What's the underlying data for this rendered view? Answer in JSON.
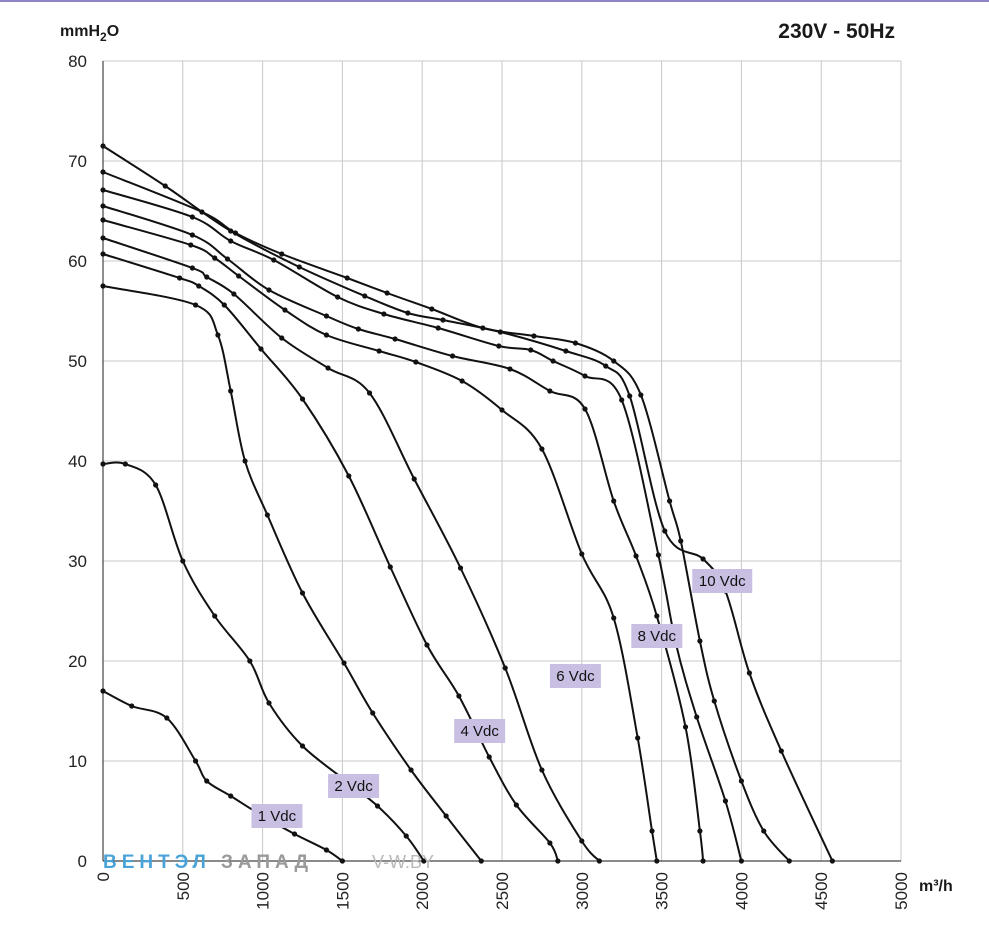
{
  "header": {
    "title": "230V - 50Hz",
    "ylabel_base": "mmH",
    "ylabel_sub": "2",
    "ylabel_end": "O",
    "xlabel": "m³/h"
  },
  "watermark": {
    "part1": "ВЕНТЭЛ",
    "part2": "ЗАПАД",
    "part3": "V-W.BY"
  },
  "colors": {
    "grid": "#c8c8c8",
    "curve": "#111111",
    "label_bg": "#c9bfe3",
    "watermark_blue": "#4aa3d8",
    "watermark_gray": "#9a9a9a"
  },
  "chart_data": {
    "type": "line",
    "title": "230V - 50Hz",
    "xlabel": "m³/h",
    "ylabel": "mmH2O",
    "xlim": [
      0,
      5000
    ],
    "ylim": [
      0,
      80
    ],
    "x_ticks": [
      0,
      500,
      1000,
      1500,
      2000,
      2500,
      3000,
      3500,
      4000,
      4500,
      5000
    ],
    "y_ticks": [
      0,
      10,
      20,
      30,
      40,
      50,
      60,
      70,
      80
    ],
    "grid": true,
    "series": [
      {
        "name": "1 Vdc",
        "label_at": [
          1090,
          4.5
        ],
        "points": [
          [
            0,
            17
          ],
          [
            180,
            15.5
          ],
          [
            400,
            14.3
          ],
          [
            580,
            10
          ],
          [
            650,
            8
          ],
          [
            800,
            6.5
          ],
          [
            1000,
            4.5
          ],
          [
            1200,
            2.7
          ],
          [
            1400,
            1.1
          ],
          [
            1500,
            0
          ]
        ]
      },
      {
        "name": "2 Vdc",
        "label_at": [
          1570,
          7.5
        ],
        "points": [
          [
            0,
            39.7
          ],
          [
            140,
            39.7
          ],
          [
            330,
            37.6
          ],
          [
            500,
            30
          ],
          [
            700,
            24.5
          ],
          [
            920,
            20
          ],
          [
            1040,
            15.8
          ],
          [
            1250,
            11.5
          ],
          [
            1540,
            7.8
          ],
          [
            1720,
            5.5
          ],
          [
            1900,
            2.5
          ],
          [
            2010,
            0
          ]
        ]
      },
      {
        "name": "4 Vdc",
        "label_at": [
          2360,
          13
        ],
        "points": [
          [
            0,
            57.5
          ],
          [
            580,
            55.6
          ],
          [
            720,
            52.6
          ],
          [
            800,
            47
          ],
          [
            890,
            40
          ],
          [
            1030,
            34.6
          ],
          [
            1250,
            26.8
          ],
          [
            1510,
            19.8
          ],
          [
            1690,
            14.8
          ],
          [
            1930,
            9.1
          ],
          [
            2150,
            4.5
          ],
          [
            2370,
            0
          ]
        ]
      },
      {
        "name": "6 Vdc",
        "label_at": [
          2960,
          18.5
        ],
        "points": [
          [
            0,
            60.7
          ],
          [
            480,
            58.3
          ],
          [
            600,
            57.5
          ],
          [
            760,
            55.6
          ],
          [
            990,
            51.2
          ],
          [
            1250,
            46.2
          ],
          [
            1540,
            38.5
          ],
          [
            1800,
            29.4
          ],
          [
            2030,
            21.6
          ],
          [
            2230,
            16.5
          ],
          [
            2420,
            10.4
          ],
          [
            2590,
            5.6
          ],
          [
            2800,
            1.8
          ],
          [
            2850,
            0
          ]
        ]
      },
      {
        "name": "8 Vdc",
        "label_at": [
          3470,
          22.5
        ],
        "points": [
          [
            0,
            62.3
          ],
          [
            560,
            59.3
          ],
          [
            650,
            58.4
          ],
          [
            820,
            56.7
          ],
          [
            1120,
            52.3
          ],
          [
            1410,
            49.3
          ],
          [
            1670,
            46.8
          ],
          [
            1950,
            38.2
          ],
          [
            2240,
            29.3
          ],
          [
            2520,
            19.3
          ],
          [
            2750,
            9.1
          ],
          [
            3000,
            2
          ],
          [
            3110,
            0
          ]
        ]
      },
      {
        "name": "10 Vdc",
        "label_at": [
          3880,
          28
        ],
        "points": [
          [
            0,
            71.5
          ],
          [
            390,
            67.5
          ],
          [
            800,
            63
          ],
          [
            1230,
            59.4
          ],
          [
            1640,
            56.5
          ],
          [
            1910,
            54.8
          ],
          [
            2130,
            54.1
          ],
          [
            2490,
            52.9
          ],
          [
            2900,
            51
          ],
          [
            3150,
            49.5
          ],
          [
            3300,
            46.5
          ],
          [
            3520,
            33
          ],
          [
            3760,
            30.2
          ],
          [
            3900,
            27
          ],
          [
            4050,
            18.8
          ],
          [
            4250,
            11
          ],
          [
            4570,
            0
          ]
        ]
      },
      {
        "name": "",
        "label_at": null,
        "points": [
          [
            0,
            64.1
          ],
          [
            550,
            61.6
          ],
          [
            700,
            60.3
          ],
          [
            850,
            58.5
          ],
          [
            1140,
            55.1
          ],
          [
            1400,
            52.6
          ],
          [
            1730,
            51
          ],
          [
            1960,
            49.9
          ],
          [
            2250,
            48
          ],
          [
            2500,
            45.1
          ],
          [
            2750,
            41.2
          ],
          [
            3000,
            30.7
          ],
          [
            3200,
            24.3
          ],
          [
            3350,
            12.3
          ],
          [
            3440,
            3
          ],
          [
            3470,
            0
          ]
        ]
      },
      {
        "name": "",
        "label_at": null,
        "points": [
          [
            0,
            65.5
          ],
          [
            560,
            62.6
          ],
          [
            780,
            60.2
          ],
          [
            1040,
            57.1
          ],
          [
            1400,
            54.5
          ],
          [
            1600,
            53.2
          ],
          [
            1830,
            52.2
          ],
          [
            2190,
            50.5
          ],
          [
            2550,
            49.2
          ],
          [
            2800,
            47
          ],
          [
            3020,
            45.2
          ],
          [
            3200,
            36
          ],
          [
            3340,
            30.5
          ],
          [
            3470,
            24.5
          ],
          [
            3650,
            13.4
          ],
          [
            3740,
            3
          ],
          [
            3760,
            0
          ]
        ]
      },
      {
        "name": "",
        "label_at": null,
        "points": [
          [
            0,
            67.1
          ],
          [
            560,
            64.4
          ],
          [
            800,
            62
          ],
          [
            1070,
            60.1
          ],
          [
            1470,
            56.4
          ],
          [
            1760,
            54.7
          ],
          [
            2100,
            53.3
          ],
          [
            2480,
            51.5
          ],
          [
            2680,
            51.1
          ],
          [
            2820,
            50
          ],
          [
            3020,
            48.5
          ],
          [
            3250,
            46.1
          ],
          [
            3480,
            30.6
          ],
          [
            3590,
            21.7
          ],
          [
            3720,
            14.4
          ],
          [
            3900,
            6
          ],
          [
            4000,
            0
          ]
        ]
      },
      {
        "name": "",
        "label_at": null,
        "points": [
          [
            0,
            68.9
          ],
          [
            620,
            64.9
          ],
          [
            830,
            62.8
          ],
          [
            1120,
            60.7
          ],
          [
            1530,
            58.3
          ],
          [
            1780,
            56.8
          ],
          [
            2060,
            55.2
          ],
          [
            2380,
            53.3
          ],
          [
            2700,
            52.5
          ],
          [
            2960,
            51.8
          ],
          [
            3200,
            50
          ],
          [
            3370,
            46.6
          ],
          [
            3550,
            36
          ],
          [
            3620,
            32
          ],
          [
            3740,
            22
          ],
          [
            3830,
            16
          ],
          [
            4000,
            8
          ],
          [
            4140,
            3
          ],
          [
            4300,
            0
          ]
        ]
      }
    ]
  }
}
